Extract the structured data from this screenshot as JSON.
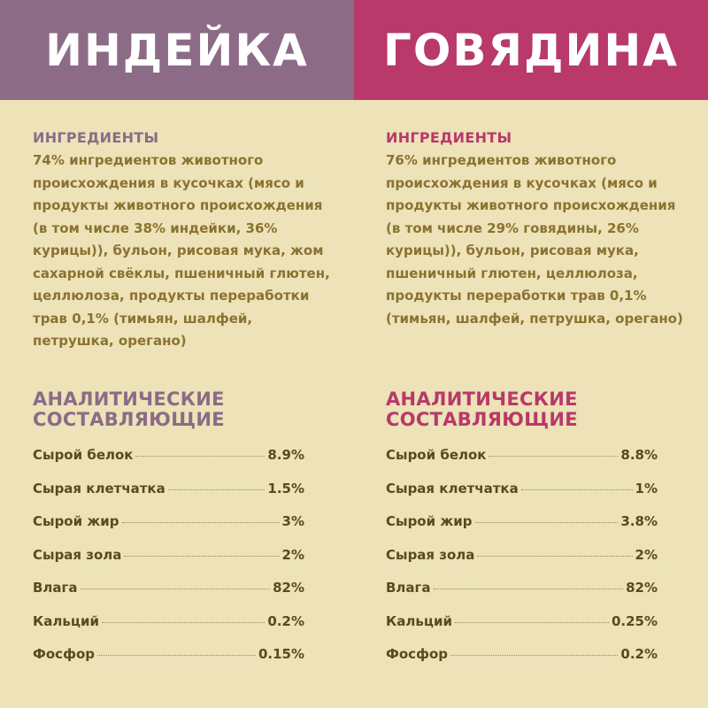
{
  "colors": {
    "left_accent": "#8c6b86",
    "right_accent": "#b8396a",
    "background": "#ede2b8"
  },
  "left": {
    "title": "ИНДЕЙКА",
    "ingredients_heading": "ИНГРЕДИЕНТЫ",
    "ingredients_text": "74% ингредиентов животного происхождения в кусочках (мясо и продукты животного происхождения (в том числе 38% индейки, 36% курицы)), бульон, рисовая мука, жом сахарной свёклы, пшеничный глютен, целлюлоза, продукты переработки трав 0,1% (тимьян, шалфей, петрушка, орегано)",
    "analytic_heading_1": "АНАЛИТИЧЕСКИЕ",
    "analytic_heading_2": "СОСТАВЛЯЮЩИЕ",
    "rows": [
      {
        "label": "Сырой белок",
        "value": "8.9%"
      },
      {
        "label": "Сырая клетчатка",
        "value": "1.5%"
      },
      {
        "label": "Сырой жир",
        "value": "3%"
      },
      {
        "label": "Сырая зола",
        "value": "2%"
      },
      {
        "label": "Влага",
        "value": "82%"
      },
      {
        "label": "Кальций",
        "value": "0.2%"
      },
      {
        "label": "Фосфор",
        "value": "0.15%"
      }
    ]
  },
  "right": {
    "title": "ГОВЯДИНА",
    "ingredients_heading": "ИНГРЕДИЕНТЫ",
    "ingredients_text": "76% ингредиентов животного происхождения в кусочках (мясо и продукты животного происхождения (в том числе 29% говядины, 26% курицы)), бульон, рисовая мука, пшеничный глютен, целлюлоза, продукты переработки трав 0,1% (тимьян, шалфей, петрушка, орегано)",
    "analytic_heading_1": "АНАЛИТИЧЕСКИЕ",
    "analytic_heading_2": "СОСТАВЛЯЮЩИЕ",
    "rows": [
      {
        "label": "Сырой белок",
        "value": "8.8%"
      },
      {
        "label": "Сырая клетчатка",
        "value": "1%"
      },
      {
        "label": "Сырой жир",
        "value": "3.8%"
      },
      {
        "label": "Сырая зола",
        "value": "2%"
      },
      {
        "label": "Влага",
        "value": "82%"
      },
      {
        "label": "Кальций",
        "value": "0.25%"
      },
      {
        "label": "Фосфор",
        "value": "0.2%"
      }
    ]
  }
}
